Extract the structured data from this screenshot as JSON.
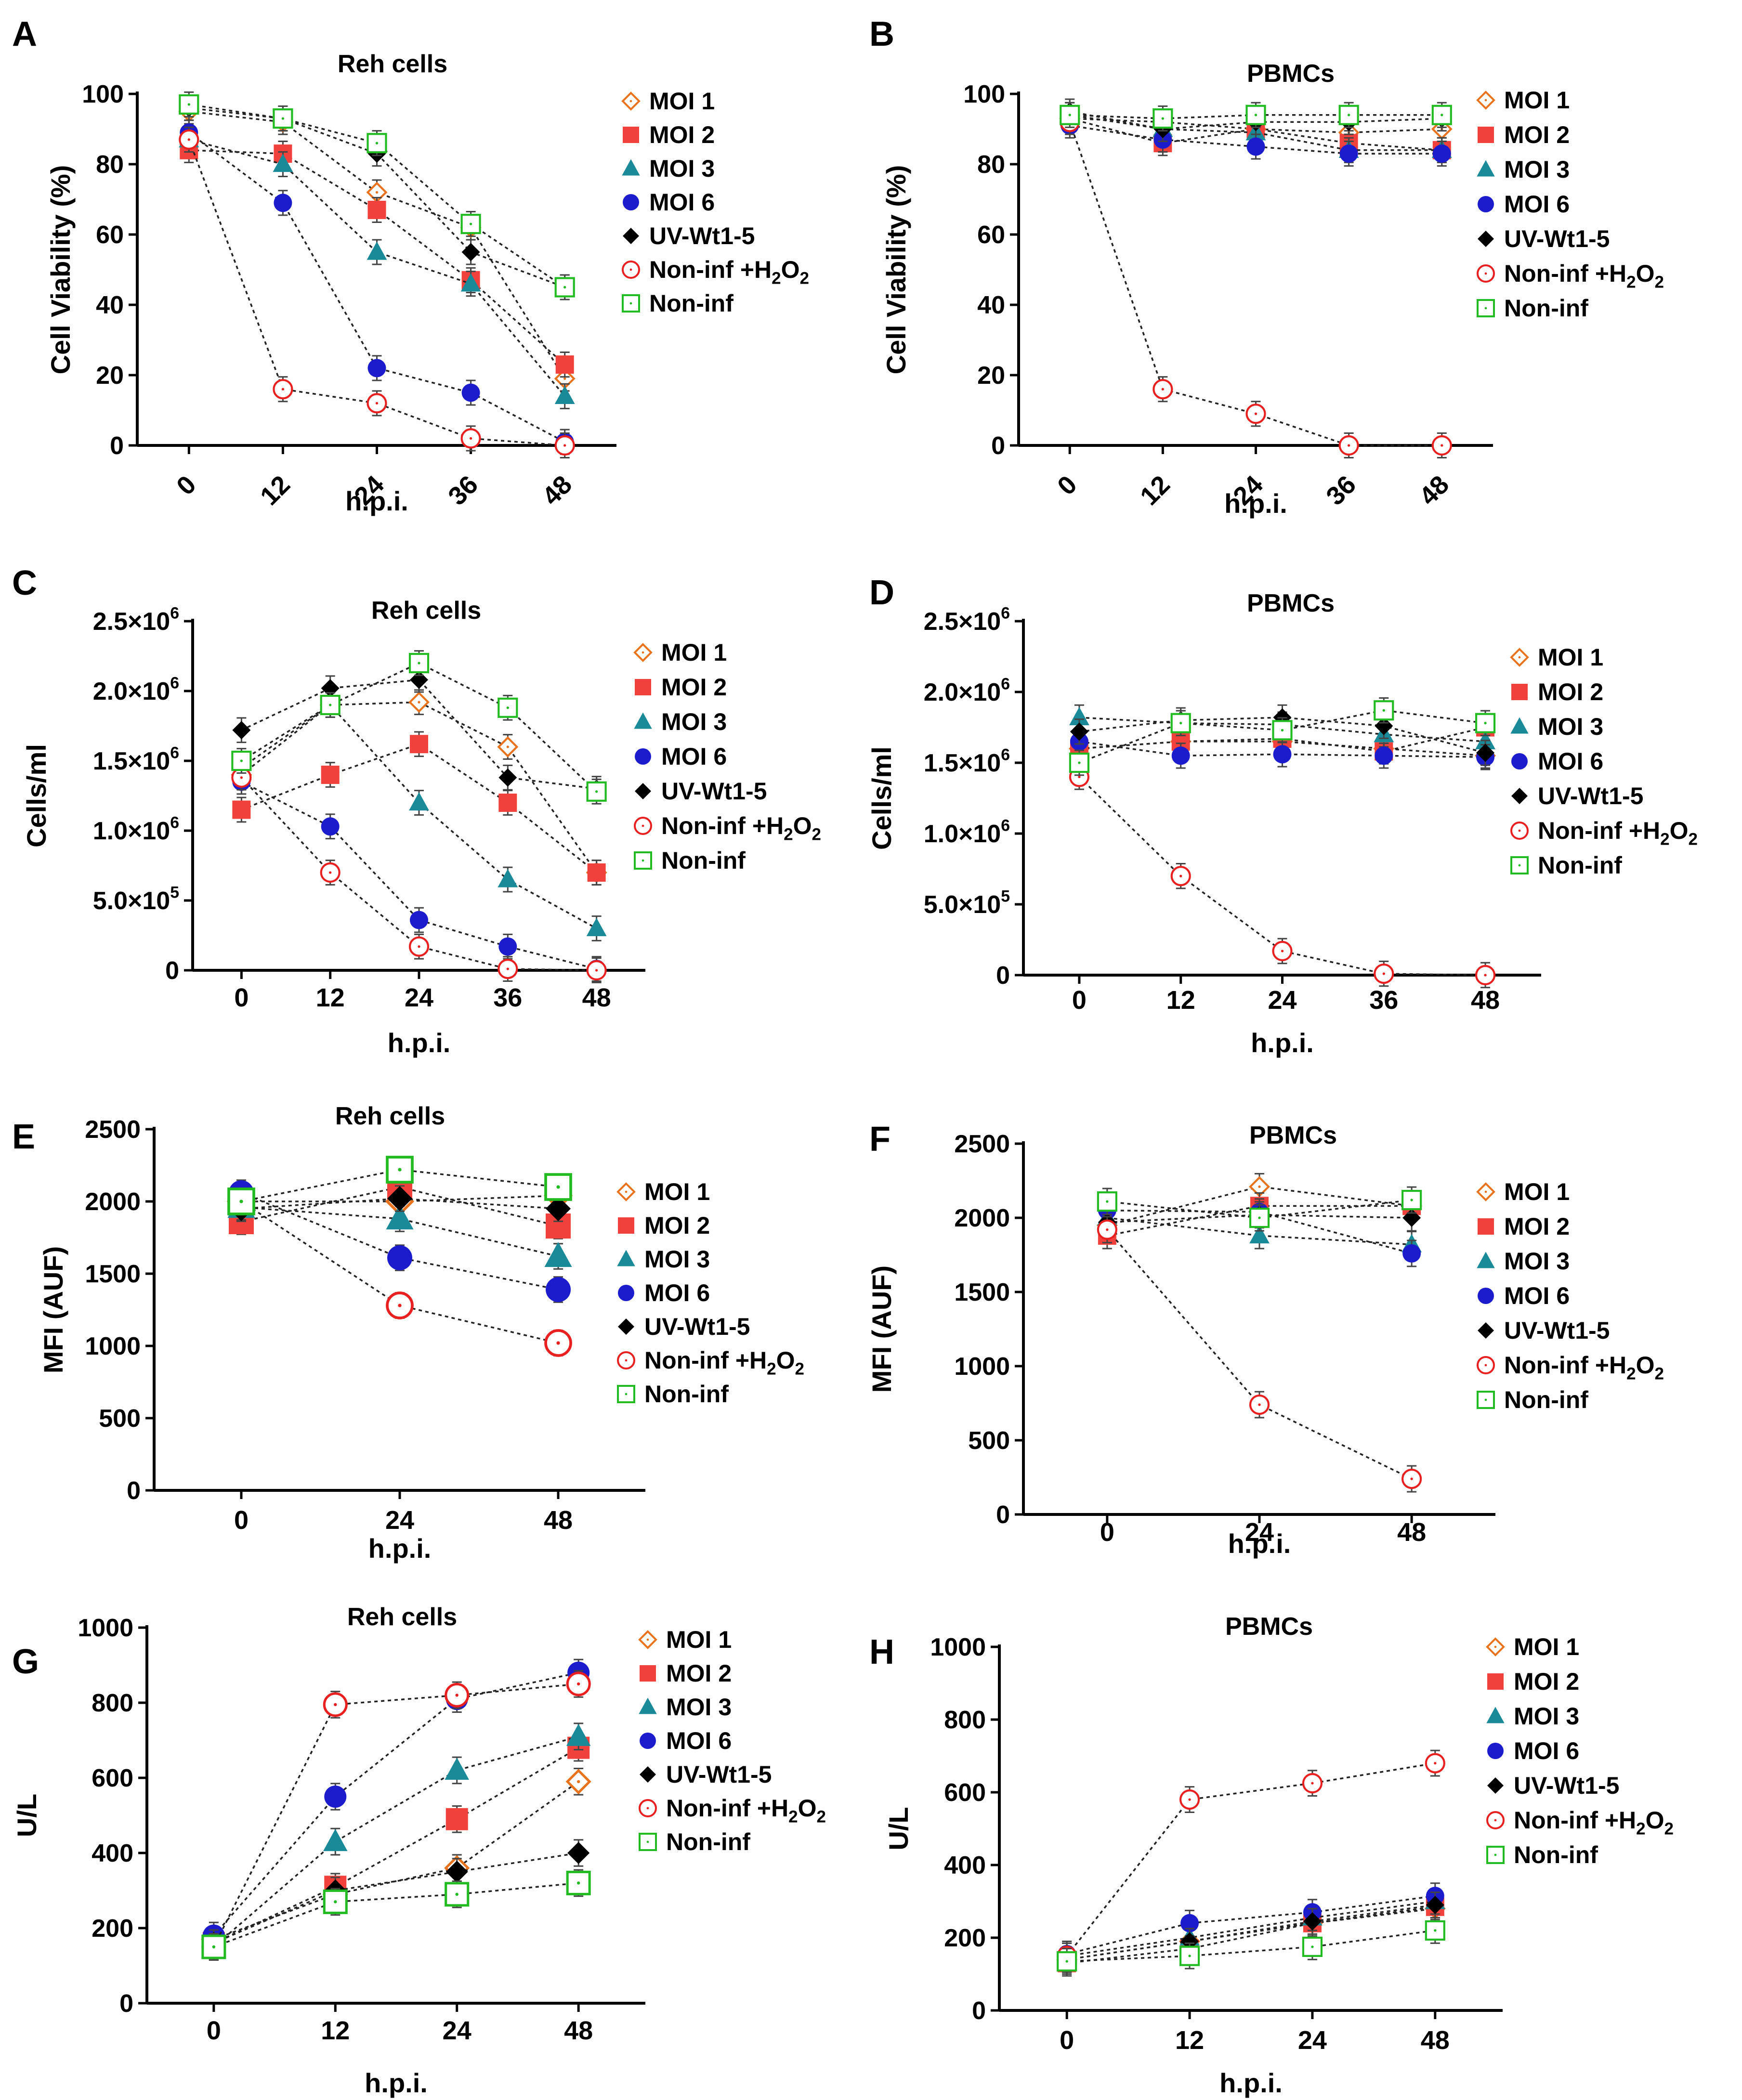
{
  "figure": {
    "series_labels": {
      "moi1": "MOI 1",
      "moi2": "MOI 2",
      "moi3": "MOI 3",
      "moi6": "MOI 6",
      "uv": "UV-Wt1-5",
      "h2o2": "Non-inf +H2O2",
      "noninf": "Non-inf"
    },
    "series_colors": {
      "moi1": "#e8731e",
      "moi2": "#f0413c",
      "moi3": "#1a8a99",
      "moi6": "#1c1ccc",
      "uv": "#000000",
      "h2o2": "#e82020",
      "noninf": "#22bb22"
    }
  },
  "chart_data": [
    {
      "panel": "A",
      "type": "line",
      "title": "Reh cells",
      "xlabel": "h.p.i.",
      "ylabel": "Cell Viability (%)",
      "x": [
        0,
        12,
        24,
        36,
        48
      ],
      "xticks": [
        "0",
        "12",
        "24",
        "36",
        "48"
      ],
      "ylim": [
        0,
        100
      ],
      "yticks": [
        "0",
        "20",
        "40",
        "60",
        "80",
        "100"
      ],
      "series": [
        {
          "key": "moi1",
          "values": [
            95,
            92,
            72,
            62,
            19
          ]
        },
        {
          "key": "moi2",
          "values": [
            84,
            83,
            67,
            47,
            23
          ]
        },
        {
          "key": "moi3",
          "values": [
            87,
            80,
            55,
            46,
            14
          ]
        },
        {
          "key": "moi6",
          "values": [
            89,
            69,
            22,
            15,
            1
          ]
        },
        {
          "key": "uv",
          "values": [
            96,
            93,
            83,
            55,
            45
          ]
        },
        {
          "key": "h2o2",
          "values": [
            87,
            16,
            12,
            2,
            0
          ]
        },
        {
          "key": "noninf",
          "values": [
            97,
            93,
            86,
            63,
            45
          ]
        }
      ]
    },
    {
      "panel": "B",
      "type": "line",
      "title": "PBMCs",
      "xlabel": "h.p.i.",
      "ylabel": "Cell Viability (%)",
      "x": [
        0,
        12,
        24,
        36,
        48
      ],
      "xticks": [
        "0",
        "12",
        "24",
        "36",
        "48"
      ],
      "ylim": [
        0,
        100
      ],
      "yticks": [
        "0",
        "20",
        "40",
        "60",
        "80",
        "100"
      ],
      "series": [
        {
          "key": "moi1",
          "values": [
            93,
            92,
            90,
            89,
            90
          ]
        },
        {
          "key": "moi2",
          "values": [
            93,
            86,
            90,
            86,
            84
          ]
        },
        {
          "key": "moi3",
          "values": [
            94,
            90,
            89,
            84,
            84
          ]
        },
        {
          "key": "moi6",
          "values": [
            91,
            87,
            85,
            83,
            83
          ]
        },
        {
          "key": "uv",
          "values": [
            95,
            90,
            92,
            92,
            93
          ]
        },
        {
          "key": "h2o2",
          "values": [
            92,
            16,
            9,
            0,
            0
          ]
        },
        {
          "key": "noninf",
          "values": [
            94,
            93,
            94,
            94,
            94
          ]
        }
      ]
    },
    {
      "panel": "C",
      "type": "line",
      "title": "Reh  cells",
      "xlabel": "h.p.i.",
      "ylabel": "Cells/ml",
      "x": [
        0,
        12,
        24,
        36,
        48
      ],
      "xticks": [
        "0",
        "12",
        "24",
        "36",
        "48"
      ],
      "ylim": [
        0,
        2500000
      ],
      "yticks": [
        "0",
        "5.0×10⁵",
        "1.0×10⁶",
        "1.5×10⁶",
        "2.0×10⁶",
        "2.5×10⁶"
      ],
      "series": [
        {
          "key": "moi1",
          "values": [
            1400000,
            1900000,
            1920000,
            1600000,
            700000
          ]
        },
        {
          "key": "moi2",
          "values": [
            1150000,
            1400000,
            1620000,
            1200000,
            700000
          ]
        },
        {
          "key": "moi3",
          "values": [
            1450000,
            1900000,
            1200000,
            650000,
            300000
          ]
        },
        {
          "key": "moi6",
          "values": [
            1350000,
            1030000,
            360000,
            170000,
            10000
          ]
        },
        {
          "key": "uv",
          "values": [
            1720000,
            2020000,
            2080000,
            1380000,
            1300000
          ]
        },
        {
          "key": "h2o2",
          "values": [
            1380000,
            700000,
            170000,
            10000,
            0
          ]
        },
        {
          "key": "noninf",
          "values": [
            1500000,
            1900000,
            2200000,
            1880000,
            1280000
          ]
        }
      ]
    },
    {
      "panel": "D",
      "type": "line",
      "title": "PBMCs",
      "xlabel": "h.p.i.",
      "ylabel": "Cells/ml",
      "x": [
        0,
        12,
        24,
        36,
        48
      ],
      "xticks": [
        "0",
        "12",
        "24",
        "36",
        "48"
      ],
      "ylim": [
        0,
        2500000
      ],
      "yticks": [
        "0",
        "5.0×10⁵",
        "1.0×10⁶",
        "1.5×10⁶",
        "2.0×10⁶",
        "2.5×10⁶"
      ],
      "series": [
        {
          "key": "moi1",
          "values": [
            1600000,
            1650000,
            1650000,
            1600000,
            1550000
          ]
        },
        {
          "key": "moi2",
          "values": [
            1600000,
            1650000,
            1670000,
            1580000,
            1750000
          ]
        },
        {
          "key": "moi3",
          "values": [
            1820000,
            1780000,
            1770000,
            1700000,
            1650000
          ]
        },
        {
          "key": "moi6",
          "values": [
            1650000,
            1550000,
            1560000,
            1550000,
            1540000
          ]
        },
        {
          "key": "uv",
          "values": [
            1720000,
            1800000,
            1820000,
            1760000,
            1570000
          ]
        },
        {
          "key": "h2o2",
          "values": [
            1400000,
            700000,
            170000,
            10000,
            0
          ]
        },
        {
          "key": "noninf",
          "values": [
            1500000,
            1780000,
            1730000,
            1870000,
            1780000
          ]
        }
      ]
    },
    {
      "panel": "E",
      "type": "line",
      "title": "Reh cells",
      "xlabel": "h.p.i.",
      "ylabel": "MFI (AUF)",
      "x": [
        0,
        24,
        48
      ],
      "xticks": [
        "0",
        "24",
        "48"
      ],
      "ylim": [
        0,
        2500
      ],
      "yticks": [
        "0",
        "500",
        "1000",
        "1500",
        "2000",
        "2500"
      ],
      "series": [
        {
          "key": "moi1",
          "values": [
            2000,
            2000,
            2040
          ]
        },
        {
          "key": "moi2",
          "values": [
            1860,
            2100,
            1830
          ]
        },
        {
          "key": "moi3",
          "values": [
            1960,
            1880,
            1620
          ]
        },
        {
          "key": "moi6",
          "values": [
            2060,
            1610,
            1390
          ]
        },
        {
          "key": "uv",
          "values": [
            1950,
            2020,
            1950
          ]
        },
        {
          "key": "h2o2",
          "values": [
            2000,
            1280,
            1020
          ]
        },
        {
          "key": "noninf",
          "values": [
            2000,
            2220,
            2100
          ]
        }
      ]
    },
    {
      "panel": "F",
      "type": "line",
      "title": "PBMCs",
      "xlabel": "h.p.i.",
      "ylabel": "MFI (AUF)",
      "x": [
        0,
        24,
        48
      ],
      "xticks": [
        "0",
        "24",
        "48"
      ],
      "ylim": [
        0,
        2500
      ],
      "yticks": [
        "0",
        "500",
        "1000",
        "1500",
        "2000",
        "2500"
      ],
      "series": [
        {
          "key": "moi1",
          "values": [
            1950,
            2210,
            2080
          ]
        },
        {
          "key": "moi2",
          "values": [
            1880,
            2080,
            2080
          ]
        },
        {
          "key": "moi3",
          "values": [
            2000,
            1880,
            1820
          ]
        },
        {
          "key": "moi6",
          "values": [
            2050,
            2040,
            1760
          ]
        },
        {
          "key": "uv",
          "values": [
            1970,
            2020,
            2000
          ]
        },
        {
          "key": "h2o2",
          "values": [
            1920,
            740,
            240
          ]
        },
        {
          "key": "noninf",
          "values": [
            2110,
            2000,
            2120
          ]
        }
      ]
    },
    {
      "panel": "G",
      "type": "line",
      "title": "Reh cells",
      "xlabel": "h.p.i.",
      "ylabel": "U/L",
      "x": [
        0,
        12,
        24,
        48
      ],
      "xticks": [
        "0",
        "12",
        "24",
        "48"
      ],
      "ylim": [
        0,
        1000
      ],
      "yticks": [
        "0",
        "200",
        "400",
        "600",
        "800",
        "1000"
      ],
      "series": [
        {
          "key": "moi1",
          "values": [
            170,
            290,
            360,
            590
          ]
        },
        {
          "key": "moi2",
          "values": [
            160,
            310,
            490,
            680
          ]
        },
        {
          "key": "moi3",
          "values": [
            150,
            430,
            620,
            710
          ]
        },
        {
          "key": "moi6",
          "values": [
            180,
            550,
            810,
            880
          ]
        },
        {
          "key": "uv",
          "values": [
            160,
            300,
            350,
            400
          ]
        },
        {
          "key": "h2o2",
          "values": [
            150,
            795,
            820,
            850
          ]
        },
        {
          "key": "noninf",
          "values": [
            150,
            270,
            290,
            320
          ]
        }
      ]
    },
    {
      "panel": "H",
      "type": "line",
      "title": "PBMCs",
      "xlabel": "h.p.i.",
      "ylabel": "U/L",
      "x": [
        0,
        12,
        24,
        48
      ],
      "xticks": [
        "0",
        "12",
        "24",
        "48"
      ],
      "ylim": [
        0,
        1000
      ],
      "yticks": [
        "0",
        "200",
        "400",
        "600",
        "800",
        "1000"
      ],
      "series": [
        {
          "key": "moi1",
          "values": [
            140,
            190,
            240,
            280
          ]
        },
        {
          "key": "moi2",
          "values": [
            130,
            170,
            240,
            285
          ]
        },
        {
          "key": "moi3",
          "values": [
            150,
            200,
            255,
            300
          ]
        },
        {
          "key": "moi6",
          "values": [
            155,
            240,
            270,
            315
          ]
        },
        {
          "key": "uv",
          "values": [
            140,
            190,
            245,
            290
          ]
        },
        {
          "key": "h2o2",
          "values": [
            150,
            580,
            625,
            680
          ]
        },
        {
          "key": "noninf",
          "values": [
            135,
            150,
            175,
            220
          ]
        }
      ]
    }
  ]
}
